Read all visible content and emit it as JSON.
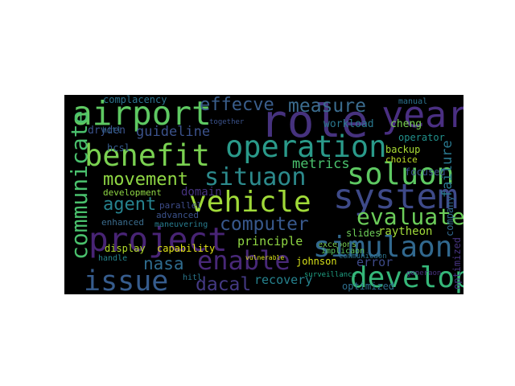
{
  "colors": {
    "background": "#000000",
    "page": "#ffffff",
    "palette": [
      "#440154",
      "#46327e",
      "#365c8d",
      "#277f8e",
      "#1fa187",
      "#4ac16d",
      "#a0da39",
      "#fde725"
    ]
  },
  "words": [
    {
      "text": "airport",
      "color": "#5ec962"
    },
    {
      "text": "role",
      "color": "#46327e"
    },
    {
      "text": "year",
      "color": "#4a2f82"
    },
    {
      "text": "benefit",
      "color": "#7ad151"
    },
    {
      "text": "operation",
      "color": "#2a9a8a"
    },
    {
      "text": "soluon",
      "color": "#5ec962"
    },
    {
      "text": "effecve",
      "color": "#3a5e8c"
    },
    {
      "text": "measure",
      "color": "#3b6c8e"
    },
    {
      "text": "situaon",
      "color": "#2c8a8c"
    },
    {
      "text": "vehicle",
      "color": "#a0da39"
    },
    {
      "text": "system",
      "color": "#3e4a89"
    },
    {
      "text": "communicate",
      "color": "#4ac16d"
    },
    {
      "text": "project",
      "color": "#482475"
    },
    {
      "text": "issue",
      "color": "#365c8d"
    },
    {
      "text": "enable",
      "color": "#482878"
    },
    {
      "text": "simulaon",
      "color": "#31688e"
    },
    {
      "text": "develop",
      "color": "#35b779"
    },
    {
      "text": "dacal",
      "color": "#443983"
    },
    {
      "text": "computer",
      "color": "#38588c"
    },
    {
      "text": "evaluate",
      "color": "#6ccd5a"
    },
    {
      "text": "metrics",
      "color": "#4ac16d"
    },
    {
      "text": "guideline",
      "color": "#3b528b"
    },
    {
      "text": "movement",
      "color": "#8fd744"
    },
    {
      "text": "agent",
      "color": "#26828e"
    },
    {
      "text": "nasa",
      "color": "#2f6c8e"
    },
    {
      "text": "principle",
      "color": "#90d743"
    },
    {
      "text": "complacency",
      "color": "#2c738e"
    },
    {
      "text": "workload",
      "color": "#2a788e"
    },
    {
      "text": "cheng",
      "color": "#7ad151"
    },
    {
      "text": "failure",
      "color": "#2a788e"
    },
    {
      "text": "dryden",
      "color": "#3b528b"
    },
    {
      "text": "hcsl",
      "color": "#365c8d"
    },
    {
      "text": "operator",
      "color": "#21918c"
    },
    {
      "text": "backup",
      "color": "#a8db34"
    },
    {
      "text": "choice",
      "color": "#bddf26"
    },
    {
      "text": "development",
      "color": "#8fd744"
    },
    {
      "text": "domain",
      "color": "#46327e"
    },
    {
      "text": "parallel",
      "color": "#3e4c8a"
    },
    {
      "text": "advanced",
      "color": "#3b528b"
    },
    {
      "text": "enhanced",
      "color": "#3b6d8e"
    },
    {
      "text": "display",
      "color": "#b5de2b"
    },
    {
      "text": "capability",
      "color": "#e2e418"
    },
    {
      "text": "handle",
      "color": "#25848e"
    },
    {
      "text": "recovery",
      "color": "#26828e"
    },
    {
      "text": "johnson",
      "color": "#d8e219"
    },
    {
      "text": "error",
      "color": "#3e4a89"
    },
    {
      "text": "slides",
      "color": "#6ece58"
    },
    {
      "text": "raytheon",
      "color": "#a0da39"
    },
    {
      "text": "excepons",
      "color": "#7ad151"
    },
    {
      "text": "focused",
      "color": "#3b528b"
    },
    {
      "text": "company",
      "color": "#31688e"
    },
    {
      "text": "optimized",
      "color": "#46337f"
    },
    {
      "text": "surveillance",
      "color": "#2e6f8e"
    },
    {
      "text": "hitl",
      "color": "#2a788e"
    },
    {
      "text": "together",
      "color": "#20a486"
    },
    {
      "text": "manual",
      "color": "#31688e"
    },
    {
      "text": "maneuvering",
      "color": "#3b528b"
    },
    {
      "text": "vulnerable",
      "color": "#2c728e"
    },
    {
      "text": "generaon",
      "color": "#287c8e"
    },
    {
      "text": "communicaon",
      "color": "#d8e219"
    },
    {
      "text": "implicaon",
      "color": "#46327e"
    },
    {
      "text": "flightdeck",
      "color": "#2c738e"
    },
    {
      "text": "tasks",
      "color": "#5ec962"
    }
  ]
}
